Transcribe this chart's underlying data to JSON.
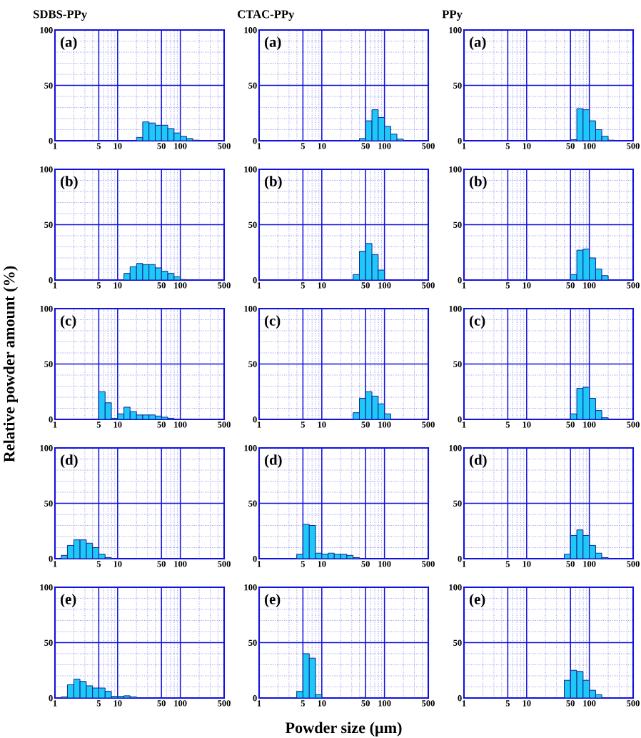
{
  "chart_data": [
    {
      "type": "histogram",
      "title": "SDBS-PPy",
      "annotations": [
        "(a)"
      ],
      "bins": [
        20,
        25.1,
        31.6,
        39.8,
        50.1,
        63.1,
        79.4,
        100,
        126,
        158,
        200
      ],
      "values": [
        3,
        17,
        16,
        14,
        14,
        11,
        7,
        4,
        2,
        0.5
      ],
      "color": "#1ec8f8",
      "xlim": [
        1,
        500
      ],
      "ylim": [
        0,
        100
      ],
      "xticks": [
        1,
        5,
        10,
        50,
        100,
        500
      ],
      "yticks": [
        0,
        50,
        100
      ],
      "log": "x",
      "grid": true
    },
    {
      "type": "histogram",
      "title": "CTAC-PPy",
      "annotations": [
        "(a)"
      ],
      "bins": [
        39.8,
        50.1,
        63.1,
        79.4,
        100,
        126,
        158,
        200
      ],
      "values": [
        2,
        18,
        28,
        21,
        13,
        6,
        1.5
      ],
      "color": "#1ec8f8",
      "xlim": [
        1,
        500
      ],
      "ylim": [
        0,
        100
      ],
      "xticks": [
        1,
        5,
        10,
        50,
        100,
        500
      ],
      "yticks": [
        0,
        50,
        100
      ],
      "log": "x",
      "grid": true
    },
    {
      "type": "histogram",
      "title": "PPy",
      "annotations": [
        "(a)"
      ],
      "bins": [
        50.1,
        63.1,
        79.4,
        100,
        126,
        158,
        200,
        251
      ],
      "values": [
        1,
        29,
        28,
        18,
        10,
        4,
        0.5
      ],
      "color": "#1ec8f8",
      "xlim": [
        1,
        500
      ],
      "ylim": [
        0,
        100
      ],
      "xticks": [
        1,
        5,
        10,
        50,
        100,
        500
      ],
      "yticks": [
        0,
        50,
        100
      ],
      "log": "x",
      "grid": true
    },
    {
      "type": "histogram",
      "annotations": [
        "(b)"
      ],
      "bins": [
        12.6,
        15.8,
        20,
        25.1,
        31.6,
        39.8,
        50.1,
        63.1,
        79.4,
        100,
        126
      ],
      "values": [
        6,
        12,
        15,
        14,
        14,
        11,
        8,
        6,
        3,
        0.5
      ],
      "color": "#1ec8f8",
      "xlim": [
        1,
        500
      ],
      "ylim": [
        0,
        100
      ],
      "xticks": [
        1,
        5,
        10,
        50,
        100,
        500
      ],
      "yticks": [
        0,
        50,
        100
      ],
      "log": "x",
      "grid": true
    },
    {
      "type": "histogram",
      "annotations": [
        "(b)"
      ],
      "bins": [
        31.6,
        39.8,
        50.1,
        63.1,
        79.4,
        100
      ],
      "values": [
        5,
        26,
        33,
        23,
        9
      ],
      "color": "#1ec8f8",
      "xlim": [
        1,
        500
      ],
      "ylim": [
        0,
        100
      ],
      "xticks": [
        1,
        5,
        10,
        50,
        100,
        500
      ],
      "yticks": [
        0,
        50,
        100
      ],
      "log": "x",
      "grid": true
    },
    {
      "type": "histogram",
      "annotations": [
        "(b)"
      ],
      "bins": [
        50.1,
        63.1,
        79.4,
        100,
        126,
        158,
        200
      ],
      "values": [
        5,
        27,
        28,
        20,
        10,
        4
      ],
      "color": "#1ec8f8",
      "xlim": [
        1,
        500
      ],
      "ylim": [
        0,
        100
      ],
      "xticks": [
        1,
        5,
        10,
        50,
        100,
        500
      ],
      "yticks": [
        0,
        50,
        100
      ],
      "log": "x",
      "grid": true
    },
    {
      "type": "histogram",
      "ylabel": "Relative powder amount (%)",
      "annotations": [
        "(c)"
      ],
      "bins": [
        5.01,
        6.31,
        7.94,
        10,
        12.6,
        15.8,
        20,
        25.1,
        31.6,
        39.8,
        50.1,
        63.1,
        79.4
      ],
      "values": [
        25,
        15,
        1,
        5,
        11,
        7,
        4,
        4,
        4,
        3,
        2,
        1
      ],
      "color": "#1ec8f8",
      "xlim": [
        1,
        500
      ],
      "ylim": [
        0,
        100
      ],
      "xticks": [
        1,
        5,
        10,
        50,
        100,
        500
      ],
      "yticks": [
        0,
        50,
        100
      ],
      "log": "x",
      "grid": true
    },
    {
      "type": "histogram",
      "annotations": [
        "(c)"
      ],
      "bins": [
        31.6,
        39.8,
        50.1,
        63.1,
        79.4,
        100,
        126
      ],
      "values": [
        6,
        19,
        25,
        21,
        14,
        5
      ],
      "color": "#1ec8f8",
      "xlim": [
        1,
        500
      ],
      "ylim": [
        0,
        100
      ],
      "xticks": [
        1,
        5,
        10,
        50,
        100,
        500
      ],
      "yticks": [
        0,
        50,
        100
      ],
      "log": "x",
      "grid": true
    },
    {
      "type": "histogram",
      "annotations": [
        "(c)"
      ],
      "bins": [
        50.1,
        63.1,
        79.4,
        100,
        126,
        158,
        200
      ],
      "values": [
        5,
        28,
        29,
        19,
        8,
        1.5
      ],
      "color": "#1ec8f8",
      "xlim": [
        1,
        500
      ],
      "ylim": [
        0,
        100
      ],
      "xticks": [
        1,
        5,
        10,
        50,
        100,
        500
      ],
      "yticks": [
        0,
        50,
        100
      ],
      "log": "x",
      "grid": true
    },
    {
      "type": "histogram",
      "annotations": [
        "(d)"
      ],
      "bins": [
        1.26,
        1.58,
        2,
        2.51,
        3.16,
        3.98,
        5.01,
        6.31,
        7.94
      ],
      "values": [
        3,
        12,
        17,
        17,
        14,
        10,
        4,
        1
      ],
      "color": "#1ec8f8",
      "xlim": [
        1,
        500
      ],
      "ylim": [
        0,
        100
      ],
      "xticks": [
        1,
        5,
        10,
        50,
        100,
        500
      ],
      "yticks": [
        0,
        50,
        100
      ],
      "log": "x",
      "grid": true
    },
    {
      "type": "histogram",
      "annotations": [
        "(d)"
      ],
      "bins": [
        3.98,
        5.01,
        6.31,
        7.94,
        10,
        12.6,
        15.8,
        20,
        25.1,
        31.6,
        39.8
      ],
      "values": [
        4,
        31,
        30,
        5,
        4,
        5,
        4,
        4,
        3,
        1
      ],
      "color": "#1ec8f8",
      "xlim": [
        1,
        500
      ],
      "ylim": [
        0,
        100
      ],
      "xticks": [
        1,
        5,
        10,
        50,
        100,
        500
      ],
      "yticks": [
        0,
        50,
        100
      ],
      "log": "x",
      "grid": true
    },
    {
      "type": "histogram",
      "annotations": [
        "(d)"
      ],
      "bins": [
        39.8,
        50.1,
        63.1,
        79.4,
        100,
        126,
        158,
        200
      ],
      "values": [
        4,
        21,
        26,
        21,
        12,
        5,
        1
      ],
      "color": "#1ec8f8",
      "xlim": [
        1,
        500
      ],
      "ylim": [
        0,
        100
      ],
      "xticks": [
        1,
        5,
        10,
        50,
        100,
        500
      ],
      "yticks": [
        0,
        50,
        100
      ],
      "log": "x",
      "grid": true
    },
    {
      "type": "histogram",
      "annotations": [
        "(e)"
      ],
      "bins": [
        1.26,
        1.58,
        2,
        2.51,
        3.16,
        3.98,
        5.01,
        6.31,
        7.94,
        10,
        12.6,
        15.8,
        20
      ],
      "values": [
        1,
        12,
        17,
        15,
        11,
        9,
        9,
        6,
        1.5,
        1.5,
        2,
        1
      ],
      "color": "#1ec8f8",
      "xlim": [
        1,
        500
      ],
      "ylim": [
        0,
        100
      ],
      "xticks": [
        1,
        5,
        10,
        50,
        100,
        500
      ],
      "yticks": [
        0,
        50,
        100
      ],
      "log": "x",
      "grid": true
    },
    {
      "type": "histogram",
      "xlabel": "Powder size (μm)",
      "annotations": [
        "(e)"
      ],
      "bins": [
        3.98,
        5.01,
        6.31,
        7.94,
        10,
        12.6,
        15.8,
        20,
        25.1,
        31.6,
        39.8,
        50.1
      ],
      "values": [
        6,
        40,
        36,
        3,
        null,
        null,
        null,
        null,
        null,
        null,
        0.5
      ],
      "color": "#1ec8f8",
      "xlim": [
        1,
        500
      ],
      "ylim": [
        0,
        100
      ],
      "xticks": [
        1,
        5,
        10,
        50,
        100,
        500
      ],
      "yticks": [
        0,
        50,
        100
      ],
      "log": "x",
      "grid": true
    },
    {
      "type": "histogram",
      "annotations": [
        "(e)"
      ],
      "bins": [
        39.8,
        50.1,
        63.1,
        79.4,
        100,
        126,
        158
      ],
      "values": [
        16,
        25,
        24,
        16,
        7,
        3
      ],
      "color": "#1ec8f8",
      "xlim": [
        1,
        500
      ],
      "ylim": [
        0,
        100
      ],
      "xticks": [
        1,
        5,
        10,
        50,
        100,
        500
      ],
      "yticks": [
        0,
        50,
        100
      ],
      "log": "x",
      "grid": true
    }
  ]
}
